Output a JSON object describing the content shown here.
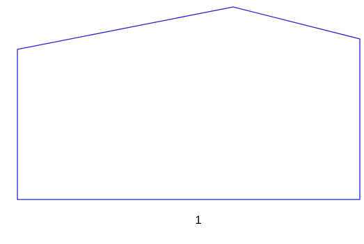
{
  "figure": {
    "label": "1",
    "stroke_color": "#1f24d6",
    "shape": "house-outline"
  }
}
